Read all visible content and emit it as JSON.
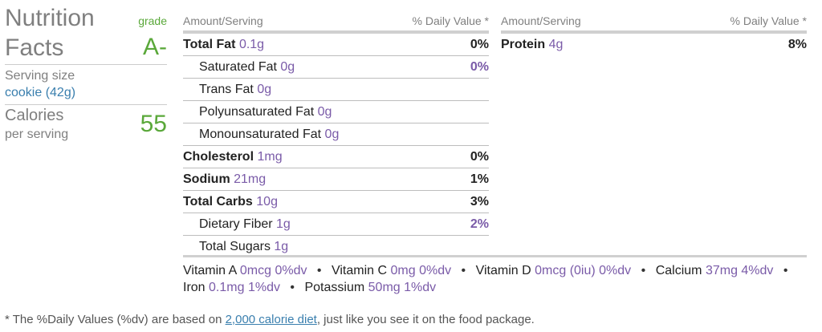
{
  "summary": {
    "title_line1": "Nutrition",
    "title_line2": "Facts",
    "grade_label": "grade",
    "grade_value": "A-",
    "serving_label": "Serving size",
    "serving_value": "cookie (42g)",
    "calories_label": "Calories",
    "calories_sub": "per serving",
    "calories_value": "55"
  },
  "headers": {
    "amount": "Amount/Serving",
    "daily_value": "% Daily Value *"
  },
  "col1": [
    {
      "name": "Total Fat",
      "amount": "0.1g",
      "pct": "0%",
      "bold": true
    },
    {
      "name": "Saturated Fat",
      "amount": "0g",
      "pct": "0%",
      "sub": true
    },
    {
      "name": "Trans Fat",
      "amount": "0g",
      "pct": "",
      "sub": true
    },
    {
      "name": "Polyunsaturated Fat",
      "amount": "0g",
      "pct": "",
      "sub": true
    },
    {
      "name": "Monounsaturated Fat",
      "amount": "0g",
      "pct": "",
      "sub": true
    },
    {
      "name": "Cholesterol",
      "amount": "1mg",
      "pct": "0%",
      "bold": true
    },
    {
      "name": "Sodium",
      "amount": "21mg",
      "pct": "1%",
      "bold": true
    },
    {
      "name": "Total Carbs",
      "amount": "10g",
      "pct": "3%",
      "bold": true
    },
    {
      "name": "Dietary Fiber",
      "amount": "1g",
      "pct": "2%",
      "sub": true
    },
    {
      "name": "Total Sugars",
      "amount": "1g",
      "pct": "",
      "sub": true
    }
  ],
  "col2": [
    {
      "name": "Protein",
      "amount": "4g",
      "pct": "8%",
      "bold": true
    }
  ],
  "vitamins": [
    {
      "name": "Vitamin A",
      "value": "0mcg 0%dv"
    },
    {
      "name": "Vitamin C",
      "value": "0mg 0%dv"
    },
    {
      "name": "Vitamin D",
      "value": "0mcg (0iu) 0%dv"
    },
    {
      "name": "Calcium",
      "value": "37mg 4%dv"
    },
    {
      "name": "Iron",
      "value": "0.1mg 1%dv"
    },
    {
      "name": "Potassium",
      "value": "50mg 1%dv"
    }
  ],
  "footnote": {
    "before": "* The %Daily Values (%dv) are based on ",
    "link": "2,000 calorie diet",
    "after": ", just like you see it on the food package."
  },
  "colors": {
    "purple": "#7a5ba8",
    "blue": "#3a7fae",
    "green": "#5aa83a"
  }
}
